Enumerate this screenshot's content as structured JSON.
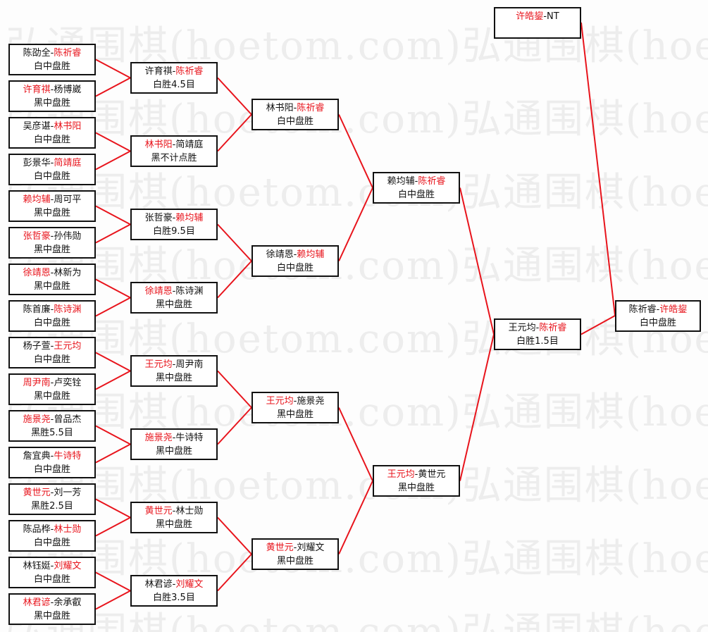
{
  "watermark": "弘通围棋(hoetom.com)",
  "colors": {
    "winner": "#e8141c",
    "line": "#e8141c",
    "border": "#111111",
    "watermark": "#ededed"
  },
  "rounds": [
    [
      {
        "p1": "陈劭全",
        "p2": "陈祈睿",
        "winner": 2,
        "result": "白中盘胜"
      },
      {
        "p1": "许育祺",
        "p2": "杨博崴",
        "winner": 1,
        "result": "黑中盘胜"
      },
      {
        "p1": "吴彦谌",
        "p2": "林书阳",
        "winner": 2,
        "result": "白中盘胜"
      },
      {
        "p1": "彭景华",
        "p2": "简靖庭",
        "winner": 2,
        "result": "白中盘胜"
      },
      {
        "p1": "赖均辅",
        "p2": "周可平",
        "winner": 1,
        "result": "黑中盘胜"
      },
      {
        "p1": "张哲豪",
        "p2": "孙伟勋",
        "winner": 1,
        "result": "黑中盘胜"
      },
      {
        "p1": "徐靖恩",
        "p2": "林新为",
        "winner": 1,
        "result": "黑中盘胜"
      },
      {
        "p1": "陈首廉",
        "p2": "陈诗渊",
        "winner": 2,
        "result": "白中盘胜"
      },
      {
        "p1": "杨子萱",
        "p2": "王元均",
        "winner": 2,
        "result": "白中盘胜"
      },
      {
        "p1": "周尹南",
        "p2": "卢奕铨",
        "winner": 1,
        "result": "黑中盘胜"
      },
      {
        "p1": "施景尧",
        "p2": "曾品杰",
        "winner": 1,
        "result": "黑胜5.5目"
      },
      {
        "p1": "詹宜典",
        "p2": "牛诗特",
        "winner": 2,
        "result": "白中盘胜"
      },
      {
        "p1": "黄世元",
        "p2": "刘一芳",
        "winner": 1,
        "result": "黑胜2.5目"
      },
      {
        "p1": "陈品桦",
        "p2": "林士勋",
        "winner": 2,
        "result": "白中盘胜"
      },
      {
        "p1": "林钰娗",
        "p2": "刘耀文",
        "winner": 2,
        "result": "白中盘胜"
      },
      {
        "p1": "林君谚",
        "p2": "余承叡",
        "winner": 1,
        "result": "黑中盘胜"
      }
    ],
    [
      {
        "p1": "许育祺",
        "p2": "陈祈睿",
        "winner": 2,
        "result": "白胜4.5目"
      },
      {
        "p1": "林书阳",
        "p2": "简靖庭",
        "winner": 1,
        "result": "黑不计点胜"
      },
      {
        "p1": "张哲豪",
        "p2": "赖均辅",
        "winner": 2,
        "result": "白胜9.5目"
      },
      {
        "p1": "徐靖恩",
        "p2": "陈诗渊",
        "winner": 1,
        "result": "黑中盘胜"
      },
      {
        "p1": "王元均",
        "p2": "周尹南",
        "winner": 1,
        "result": "黑中盘胜"
      },
      {
        "p1": "施景尧",
        "p2": "牛诗特",
        "winner": 1,
        "result": "黑中盘胜"
      },
      {
        "p1": "黄世元",
        "p2": "林士勋",
        "winner": 1,
        "result": "黑中盘胜"
      },
      {
        "p1": "林君谚",
        "p2": "刘耀文",
        "winner": 2,
        "result": "白胜3.5目"
      }
    ],
    [
      {
        "p1": "林书阳",
        "p2": "陈祈睿",
        "winner": 2,
        "result": "白中盘胜"
      },
      {
        "p1": "徐靖恩",
        "p2": "赖均辅",
        "winner": 2,
        "result": "白中盘胜"
      },
      {
        "p1": "王元均",
        "p2": "施景尧",
        "winner": 1,
        "result": "黑中盘胜"
      },
      {
        "p1": "黄世元",
        "p2": "刘耀文",
        "winner": 1,
        "result": "黑中盘胜"
      }
    ],
    [
      {
        "p1": "赖均辅",
        "p2": "陈祈睿",
        "winner": 2,
        "result": "白中盘胜"
      },
      {
        "p1": "王元均",
        "p2": "黄世元",
        "winner": 1,
        "result": "黑中盘胜"
      }
    ],
    [
      {
        "p1": "王元均",
        "p2": "陈祈睿",
        "winner": 2,
        "result": "白胜1.5目"
      }
    ]
  ],
  "bye": {
    "p1": "许皓鋆",
    "p2": "NT",
    "winner": 1,
    "result": ""
  },
  "final": {
    "p1": "陈祈睿",
    "p2": "许皓鋆",
    "winner": 2,
    "result": "白中盘胜"
  }
}
